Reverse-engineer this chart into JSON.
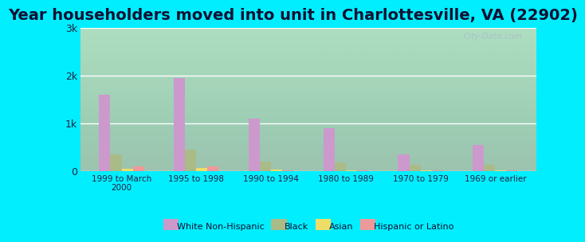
{
  "title": "Year householders moved into unit in Charlottesville, VA (22902)",
  "categories": [
    "1999 to March\n2000",
    "1995 to 1998",
    "1990 to 1994",
    "1980 to 1989",
    "1970 to 1979",
    "1969 or earlier"
  ],
  "series": {
    "White Non-Hispanic": [
      1600,
      1950,
      1100,
      900,
      350,
      550
    ],
    "Black": [
      350,
      450,
      200,
      175,
      130,
      130
    ],
    "Asian": [
      50,
      70,
      30,
      20,
      10,
      10
    ],
    "Hispanic or Latino": [
      100,
      100,
      10,
      10,
      5,
      5
    ]
  },
  "colors": {
    "White Non-Hispanic": "#cc99cc",
    "Black": "#aabb88",
    "Asian": "#eedd66",
    "Hispanic or Latino": "#ee9999"
  },
  "ylim": [
    0,
    3000
  ],
  "yticks": [
    0,
    1000,
    2000,
    3000
  ],
  "ytick_labels": [
    "0",
    "1k",
    "2k",
    "3k"
  ],
  "outer_bg": "#00eeff",
  "plot_bg_top": "#c8eee0",
  "plot_bg_bottom": "#daf5ec",
  "title_fontsize": 14,
  "bar_width": 0.15,
  "watermark": "City-Data.com"
}
